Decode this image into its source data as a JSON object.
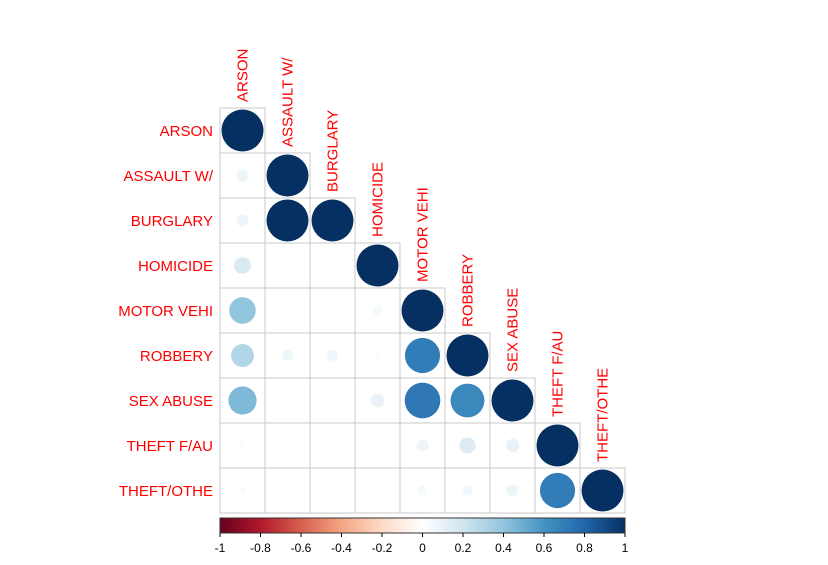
{
  "chart_data": {
    "type": "heatmap",
    "variant": "correlation-matrix-lower-triangle-circles",
    "variables": [
      "ARSON",
      "ASSAULT W/",
      "BURGLARY",
      "HOMICIDE",
      "MOTOR VEHI",
      "ROBBERY",
      "SEX ABUSE",
      "THEFT F/AU",
      "THEFT/OTHE"
    ],
    "matrix": [
      [
        1.0
      ],
      [
        0.08,
        1.0
      ],
      [
        0.08,
        1.0,
        1.0
      ],
      [
        0.16,
        0.0,
        0.0,
        1.0
      ],
      [
        0.4,
        0.0,
        0.0,
        0.05,
        1.0
      ],
      [
        0.3,
        0.07,
        0.07,
        0.02,
        0.7,
        1.0
      ],
      [
        0.45,
        0.01,
        0.01,
        0.1,
        0.72,
        0.65,
        1.0
      ],
      [
        0.02,
        0.0,
        0.0,
        0.0,
        0.08,
        0.15,
        0.1,
        1.0
      ],
      [
        0.03,
        0.0,
        0.0,
        0.0,
        0.05,
        0.06,
        0.08,
        0.7,
        1.0
      ]
    ],
    "colorbar": {
      "min": -1,
      "max": 1,
      "ticks": [
        "-1",
        "-0.8",
        "-0.6",
        "-0.4",
        "-0.2",
        "0",
        "0.2",
        "0.4",
        "0.6",
        "0.8",
        "1"
      ]
    },
    "colors": {
      "label": "#ff0000",
      "grid": "#c8c8c8",
      "scale": [
        "#67001f",
        "#b2182b",
        "#d6604d",
        "#f4a582",
        "#fddbc7",
        "#ffffff",
        "#d1e5f0",
        "#92c5de",
        "#4393c3",
        "#2166ac",
        "#053061"
      ]
    }
  }
}
